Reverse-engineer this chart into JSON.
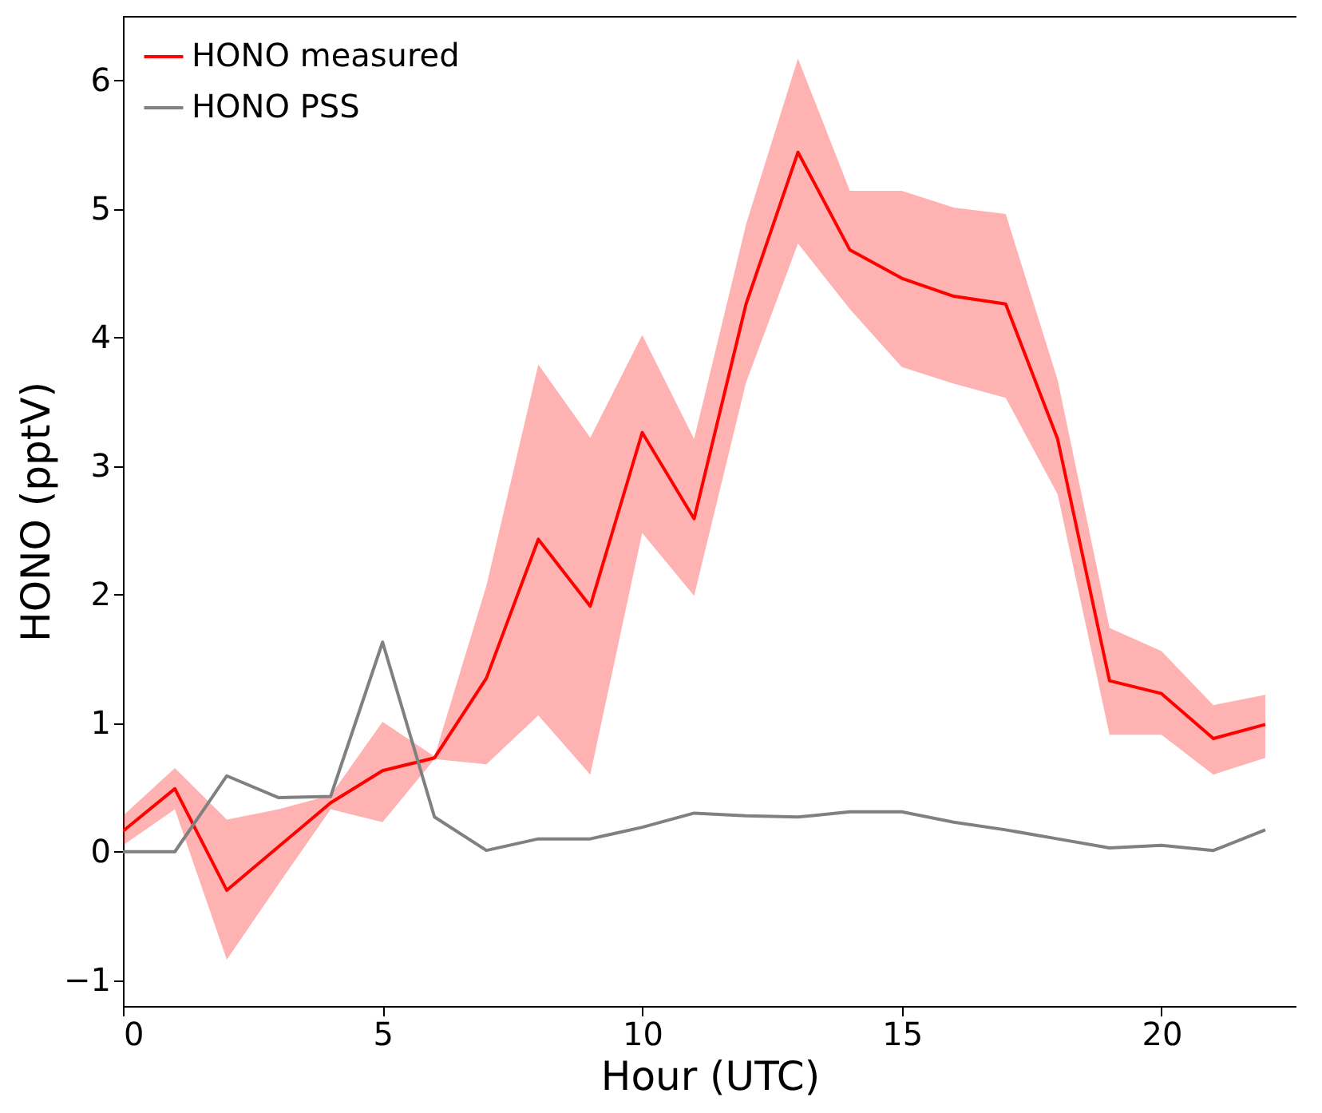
{
  "chart_data": {
    "type": "line",
    "xlabel": "Hour (UTC)",
    "ylabel": "HONO (pptV)",
    "x": [
      0,
      1,
      2,
      3,
      4,
      5,
      6,
      7,
      8,
      9,
      10,
      11,
      12,
      13,
      14,
      15,
      16,
      17,
      18,
      19,
      20,
      21,
      22
    ],
    "series": [
      {
        "name": "HONO measured",
        "color": "#ff0000",
        "values": [
          0.16,
          0.49,
          -0.3,
          0.04,
          0.38,
          0.63,
          0.73,
          1.35,
          2.43,
          1.91,
          3.26,
          2.59,
          4.26,
          5.44,
          4.68,
          4.46,
          4.32,
          4.26,
          3.21,
          1.33,
          1.23,
          0.88,
          0.99
        ],
        "lower": [
          0.05,
          0.33,
          -0.84,
          -0.25,
          0.33,
          0.23,
          0.72,
          0.68,
          1.06,
          0.6,
          2.48,
          1.99,
          3.65,
          4.73,
          4.22,
          3.77,
          3.64,
          3.53,
          2.78,
          0.91,
          0.91,
          0.6,
          0.73
        ],
        "upper": [
          0.28,
          0.65,
          0.25,
          0.33,
          0.44,
          1.01,
          0.74,
          2.07,
          3.79,
          3.22,
          4.02,
          3.21,
          4.88,
          6.17,
          5.14,
          5.14,
          5.01,
          4.96,
          3.67,
          1.74,
          1.56,
          1.14,
          1.22
        ]
      },
      {
        "name": "HONO PSS",
        "color": "#808080",
        "values": [
          0.0,
          0.0,
          0.59,
          0.42,
          0.43,
          1.63,
          0.27,
          0.01,
          0.1,
          0.1,
          0.19,
          0.3,
          0.28,
          0.27,
          0.31,
          0.31,
          0.23,
          0.17,
          0.1,
          0.03,
          0.05,
          0.01,
          0.17
        ]
      }
    ],
    "xlim": [
      0,
      22.6
    ],
    "xticks": [
      0,
      5,
      10,
      15,
      20
    ],
    "ylim": [
      -1.2,
      6.5
    ],
    "yticks": [
      -1,
      0,
      1,
      2,
      3,
      4,
      5,
      6
    ],
    "legend": "top left"
  }
}
